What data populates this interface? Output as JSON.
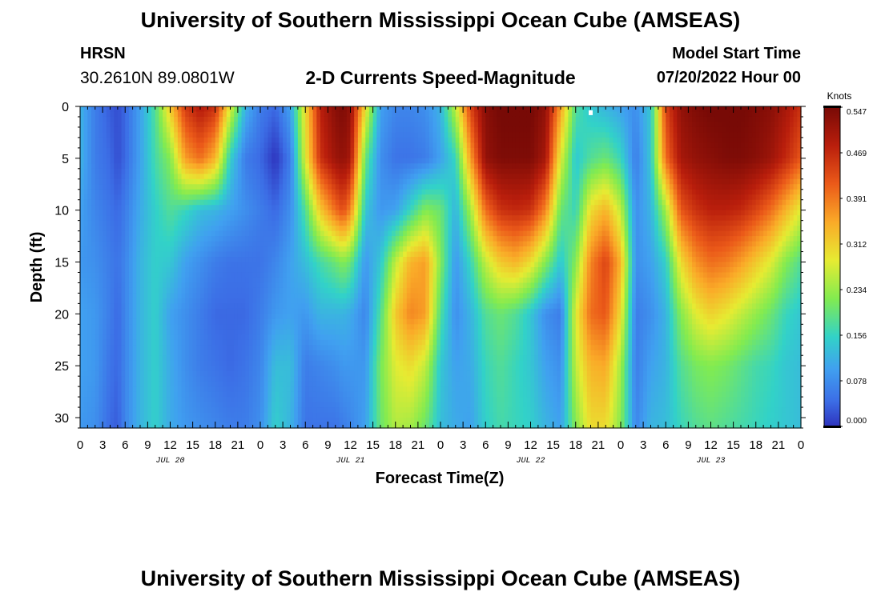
{
  "header": {
    "title": "University of Southern Mississippi Ocean Cube (AMSEAS)",
    "station_name": "HRSN",
    "station_coords": "30.2610N  89.0801W",
    "chart_title": "2-D Currents Speed-Magnitude",
    "model_start_label": "Model Start Time",
    "model_start_value": "07/20/2022 Hour 00"
  },
  "footer": {
    "title": "University of Southern Mississippi Ocean Cube (AMSEAS)"
  },
  "colors": {
    "low": "#2f3fc8",
    "mid": "#7cf04a",
    "high": "#7a0a06"
  },
  "chart_data": {
    "type": "heatmap",
    "title": "2-D Currents Speed-Magnitude",
    "xlabel": "Forecast Time(Z)",
    "ylabel": "Depth (ft)",
    "x_range_hours": [
      0,
      96
    ],
    "ylim": [
      0,
      31
    ],
    "y_ticks": [
      0,
      5,
      10,
      15,
      20,
      25,
      30
    ],
    "x_tick_labels": [
      "0",
      "3",
      "6",
      "9",
      "12",
      "15",
      "18",
      "21",
      "0",
      "3",
      "6",
      "9",
      "12",
      "15",
      "18",
      "21",
      "0",
      "3",
      "6",
      "9",
      "12",
      "15",
      "18",
      "21",
      "0",
      "3",
      "6",
      "9",
      "12",
      "15",
      "18",
      "21",
      "0"
    ],
    "date_labels": [
      {
        "label": "JUL 20",
        "hour": 12
      },
      {
        "label": "JUL 21",
        "hour": 36
      },
      {
        "label": "JUL 22",
        "hour": 60
      },
      {
        "label": "JUL 23",
        "hour": 84
      }
    ],
    "colorbar": {
      "label": "Knots",
      "min": 0.0,
      "max": 0.547,
      "ticks": [
        "0.000",
        "0.078",
        "0.156",
        "0.234",
        "0.312",
        "0.391",
        "0.469",
        "0.547"
      ]
    },
    "speed_profiles": {
      "hours": [
        0,
        2,
        4,
        5,
        6,
        8,
        10,
        12,
        14,
        16,
        18,
        20,
        22,
        24,
        26,
        28,
        30,
        32,
        34,
        35,
        36,
        38,
        40,
        42,
        44,
        46,
        48,
        50,
        52,
        54,
        56,
        58,
        60,
        62,
        64,
        66,
        68,
        70,
        72,
        74,
        76,
        78,
        80,
        82,
        84,
        86,
        88,
        90,
        92,
        94,
        96
      ],
      "depths_ft": [
        0,
        5,
        10,
        15,
        20,
        25,
        31
      ],
      "values_knots": [
        [
          0.12,
          0.12,
          0.1,
          0.09,
          0.1,
          0.1,
          0.09
        ],
        [
          0.06,
          0.06,
          0.07,
          0.08,
          0.09,
          0.09,
          0.08
        ],
        [
          0.03,
          0.04,
          0.05,
          0.06,
          0.06,
          0.05,
          0.04
        ],
        [
          0.02,
          0.02,
          0.04,
          0.05,
          0.04,
          0.04,
          0.03
        ],
        [
          0.04,
          0.04,
          0.06,
          0.07,
          0.07,
          0.07,
          0.07
        ],
        [
          0.1,
          0.1,
          0.11,
          0.12,
          0.12,
          0.12,
          0.12
        ],
        [
          0.18,
          0.17,
          0.15,
          0.15,
          0.15,
          0.15,
          0.15
        ],
        [
          0.32,
          0.22,
          0.18,
          0.14,
          0.1,
          0.11,
          0.11
        ],
        [
          0.45,
          0.36,
          0.16,
          0.1,
          0.08,
          0.08,
          0.09
        ],
        [
          0.49,
          0.4,
          0.13,
          0.08,
          0.06,
          0.06,
          0.08
        ],
        [
          0.46,
          0.34,
          0.12,
          0.06,
          0.04,
          0.05,
          0.07
        ],
        [
          0.28,
          0.15,
          0.1,
          0.05,
          0.04,
          0.04,
          0.06
        ],
        [
          0.12,
          0.06,
          0.08,
          0.05,
          0.04,
          0.05,
          0.06
        ],
        [
          0.06,
          0.04,
          0.06,
          0.05,
          0.06,
          0.07,
          0.08
        ],
        [
          0.04,
          0.0,
          0.04,
          0.07,
          0.09,
          0.13,
          0.15
        ],
        [
          0.1,
          0.06,
          0.08,
          0.1,
          0.1,
          0.13,
          0.12
        ],
        [
          0.3,
          0.28,
          0.18,
          0.13,
          0.09,
          0.06,
          0.05
        ],
        [
          0.48,
          0.46,
          0.32,
          0.17,
          0.12,
          0.07,
          0.05
        ],
        [
          0.53,
          0.51,
          0.4,
          0.2,
          0.12,
          0.08,
          0.05
        ],
        [
          0.54,
          0.52,
          0.43,
          0.22,
          0.12,
          0.09,
          0.06
        ],
        [
          0.52,
          0.5,
          0.38,
          0.2,
          0.11,
          0.09,
          0.07
        ],
        [
          0.3,
          0.2,
          0.14,
          0.09,
          0.07,
          0.09,
          0.1
        ],
        [
          0.1,
          0.08,
          0.09,
          0.14,
          0.18,
          0.21,
          0.2
        ],
        [
          0.07,
          0.05,
          0.1,
          0.26,
          0.32,
          0.28,
          0.25
        ],
        [
          0.07,
          0.05,
          0.16,
          0.34,
          0.38,
          0.3,
          0.24
        ],
        [
          0.08,
          0.06,
          0.22,
          0.36,
          0.36,
          0.26,
          0.2
        ],
        [
          0.12,
          0.1,
          0.2,
          0.22,
          0.18,
          0.14,
          0.13
        ],
        [
          0.26,
          0.16,
          0.12,
          0.09,
          0.08,
          0.1,
          0.11
        ],
        [
          0.44,
          0.36,
          0.24,
          0.16,
          0.12,
          0.11,
          0.1
        ],
        [
          0.53,
          0.52,
          0.4,
          0.26,
          0.18,
          0.16,
          0.15
        ],
        [
          0.55,
          0.54,
          0.46,
          0.32,
          0.2,
          0.18,
          0.17
        ],
        [
          0.55,
          0.54,
          0.47,
          0.34,
          0.18,
          0.16,
          0.16
        ],
        [
          0.55,
          0.54,
          0.46,
          0.3,
          0.14,
          0.14,
          0.15
        ],
        [
          0.52,
          0.5,
          0.38,
          0.22,
          0.08,
          0.1,
          0.12
        ],
        [
          0.36,
          0.28,
          0.2,
          0.14,
          0.06,
          0.08,
          0.1
        ],
        [
          0.18,
          0.14,
          0.16,
          0.22,
          0.28,
          0.26,
          0.22
        ],
        [
          0.14,
          0.18,
          0.3,
          0.38,
          0.4,
          0.34,
          0.3
        ],
        [
          0.12,
          0.2,
          0.34,
          0.44,
          0.42,
          0.35,
          0.3
        ],
        [
          0.1,
          0.16,
          0.26,
          0.34,
          0.3,
          0.24,
          0.22
        ],
        [
          0.08,
          0.06,
          0.08,
          0.08,
          0.06,
          0.06,
          0.07
        ],
        [
          0.14,
          0.14,
          0.12,
          0.1,
          0.08,
          0.1,
          0.12
        ],
        [
          0.44,
          0.4,
          0.24,
          0.15,
          0.12,
          0.12,
          0.13
        ],
        [
          0.52,
          0.5,
          0.42,
          0.3,
          0.22,
          0.18,
          0.16
        ],
        [
          0.54,
          0.52,
          0.46,
          0.37,
          0.28,
          0.21,
          0.18
        ],
        [
          0.55,
          0.53,
          0.48,
          0.4,
          0.31,
          0.22,
          0.19
        ],
        [
          0.55,
          0.54,
          0.48,
          0.39,
          0.29,
          0.21,
          0.18
        ],
        [
          0.55,
          0.54,
          0.47,
          0.36,
          0.26,
          0.19,
          0.17
        ],
        [
          0.54,
          0.53,
          0.44,
          0.32,
          0.23,
          0.17,
          0.16
        ],
        [
          0.53,
          0.51,
          0.4,
          0.28,
          0.2,
          0.16,
          0.15
        ],
        [
          0.5,
          0.47,
          0.34,
          0.22,
          0.16,
          0.14,
          0.14
        ],
        [
          0.46,
          0.42,
          0.28,
          0.18,
          0.14,
          0.13,
          0.13
        ]
      ]
    },
    "annotations": [
      {
        "type": "marker",
        "hour": 68,
        "depth_ft": 0.3
      }
    ]
  }
}
